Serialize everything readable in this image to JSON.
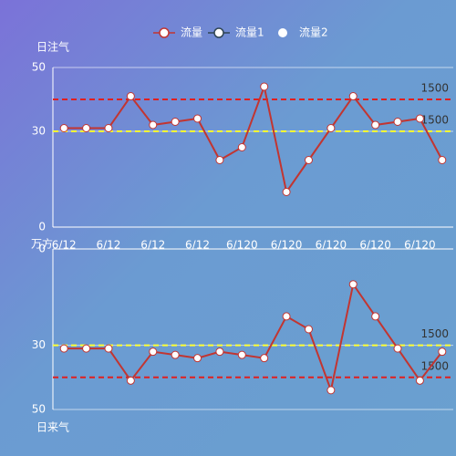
{
  "legend": [
    {
      "name": "流量",
      "color": "#c23531"
    },
    {
      "name": "流量1",
      "color": "#2f4554"
    },
    {
      "name": "流量2",
      "color": "#ffffff"
    }
  ],
  "chart_data": [
    {
      "type": "line",
      "y_label": "日注气",
      "x_label": "万方",
      "categories": [
        "6/12",
        null,
        "6/12",
        null,
        "6/12",
        null,
        "6/12",
        null,
        "6/120",
        null,
        "6/120",
        null,
        "6/120",
        null,
        "6/120",
        null,
        "6/120",
        null
      ],
      "series": [
        {
          "name": "流量",
          "color": "#c23531",
          "values": [
            31,
            31,
            31,
            41,
            32,
            33,
            34,
            21,
            25,
            44,
            11,
            21,
            31,
            41,
            32,
            33,
            34,
            21
          ]
        }
      ],
      "ylim": [
        0,
        50
      ],
      "yticks": [
        0,
        30,
        50
      ],
      "inverse": false,
      "reference_lines": [
        {
          "value": 40,
          "color": "#e01f1f"
        },
        {
          "value": 30,
          "color": "#ffff33"
        }
      ],
      "annotations": [
        "1500",
        "1500"
      ]
    },
    {
      "type": "line",
      "y_label": "日来气",
      "series": [
        {
          "name": "流量",
          "color": "#c23531",
          "values": [
            31,
            31,
            31,
            41,
            32,
            33,
            34,
            32,
            33,
            34,
            21,
            25,
            44,
            11,
            21,
            31,
            41,
            32
          ]
        }
      ],
      "ylim": [
        0,
        50
      ],
      "yticks": [
        0,
        30,
        50
      ],
      "inverse": true,
      "reference_lines": [
        {
          "value": 30,
          "color": "#ffff33"
        },
        {
          "value": 40,
          "color": "#e01f1f"
        }
      ],
      "annotations": [
        "1500",
        "1500"
      ]
    }
  ]
}
